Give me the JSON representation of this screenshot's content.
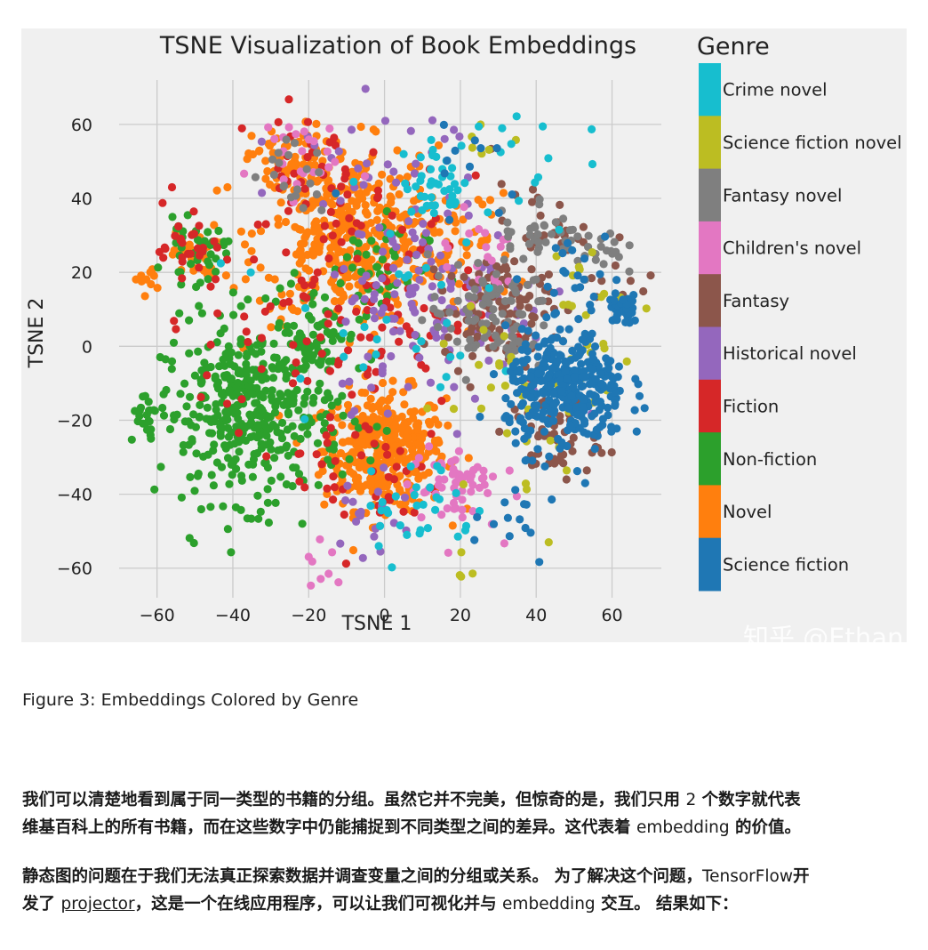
{
  "chart_data": {
    "type": "scatter",
    "title": "TSNE Visualization of Book Embeddings",
    "xlabel": "TSNE 1",
    "ylabel": "TSNE 2",
    "xlim": [
      -70,
      73
    ],
    "ylim": [
      -68,
      72
    ],
    "xticks": [
      -60,
      -40,
      -20,
      0,
      20,
      40,
      60
    ],
    "yticks": [
      -60,
      -40,
      -20,
      0,
      20,
      40,
      60
    ],
    "xtick_labels": [
      "−60",
      "−40",
      "−20",
      "0",
      "20",
      "40",
      "60"
    ],
    "ytick_labels": [
      "−60",
      "−40",
      "−20",
      "0",
      "20",
      "40",
      "60"
    ],
    "grid": true,
    "legend_title": "Genre",
    "legend_placement": "right",
    "series": [
      {
        "name": "Crime novel",
        "color": "#17becf",
        "clusters": [
          [
            15,
            45,
            5,
            40
          ],
          [
            8,
            -44,
            8,
            30
          ],
          [
            -2,
            10,
            14,
            30
          ],
          [
            30,
            50,
            10,
            15
          ]
        ]
      },
      {
        "name": "Science fiction novel",
        "color": "#bcbd22",
        "clusters": [
          [
            42,
            -10,
            14,
            40
          ],
          [
            28,
            58,
            4,
            6
          ],
          [
            20,
            -60,
            3,
            4
          ],
          [
            55,
            10,
            8,
            15
          ]
        ]
      },
      {
        "name": "Fantasy novel",
        "color": "#7f7f7f",
        "clusters": [
          [
            28,
            8,
            8,
            90
          ],
          [
            55,
            27,
            4,
            25
          ],
          [
            40,
            32,
            5,
            25
          ],
          [
            -25,
            45,
            5,
            20
          ]
        ]
      },
      {
        "name": "Children's novel",
        "color": "#e377c2",
        "clusters": [
          [
            18,
            -38,
            6,
            60
          ],
          [
            -25,
            52,
            6,
            25
          ],
          [
            -15,
            -60,
            5,
            8
          ],
          [
            25,
            25,
            6,
            20
          ]
        ]
      },
      {
        "name": "Fantasy",
        "color": "#8c564b",
        "clusters": [
          [
            30,
            10,
            7,
            110
          ],
          [
            45,
            -25,
            6,
            50
          ],
          [
            40,
            32,
            6,
            30
          ],
          [
            65,
            18,
            5,
            10
          ]
        ]
      },
      {
        "name": "Historical novel",
        "color": "#9467bd",
        "clusters": [
          [
            15,
            12,
            14,
            130
          ],
          [
            0,
            50,
            14,
            40
          ],
          [
            -5,
            -45,
            8,
            20
          ]
        ]
      },
      {
        "name": "Fiction",
        "color": "#d62728",
        "clusters": [
          [
            -12,
            10,
            18,
            130
          ],
          [
            -52,
            28,
            4,
            25
          ],
          [
            -5,
            -35,
            10,
            40
          ],
          [
            -20,
            50,
            10,
            30
          ]
        ]
      },
      {
        "name": "Non-fiction",
        "color": "#2ca02c",
        "clusters": [
          [
            -35,
            -18,
            12,
            420
          ],
          [
            -50,
            25,
            4,
            40
          ],
          [
            -18,
            5,
            6,
            60
          ],
          [
            -62,
            -18,
            3,
            20
          ],
          [
            -5,
            20,
            8,
            40
          ]
        ]
      },
      {
        "name": "Novel",
        "color": "#ff7f0e",
        "clusters": [
          [
            0,
            -28,
            8,
            380
          ],
          [
            -10,
            30,
            12,
            400
          ],
          [
            -50,
            25,
            3,
            30
          ],
          [
            -25,
            50,
            5,
            60
          ],
          [
            18,
            25,
            8,
            60
          ],
          [
            -62,
            18,
            2,
            10
          ]
        ]
      },
      {
        "name": "Science fiction",
        "color": "#1f77b4",
        "clusters": [
          [
            48,
            -12,
            8,
            340
          ],
          [
            63,
            10,
            2,
            40
          ],
          [
            50,
            20,
            6,
            20
          ],
          [
            20,
            55,
            12,
            12
          ],
          [
            35,
            -40,
            8,
            15
          ]
        ]
      }
    ]
  },
  "watermark": "知乎 @Ethan",
  "caption": "Figure 3: Embeddings Colored by Genre",
  "paragraph1": {
    "line1_a": "我们可以清楚地看到属于同一类型的书籍的分组。虽然它并不完美，但惊奇的是，我们只用 ",
    "line1_num": "2",
    "line1_b": " 个数字就代表",
    "line2_a": "维基百科上的所有书籍，而在这些数字中仍能捕捉到不同类型之间的差异。这代表着 ",
    "line2_word": "embedding",
    "line2_b": " 的价值。"
  },
  "paragraph2": {
    "line1_a": "静态图的问题在于我们无法真正探索数据并调查变量之间的分组或关系。 为了解决这个问题，",
    "line1_word": "TensorFlow",
    "line1_b": "开",
    "line2_a": "发了 ",
    "line2_link": "projector",
    "line2_b": "，这是一个在线应用程序，可以让我们可视化并与 ",
    "line2_word": "embedding",
    "line2_c": " 交互。 结果如下："
  }
}
